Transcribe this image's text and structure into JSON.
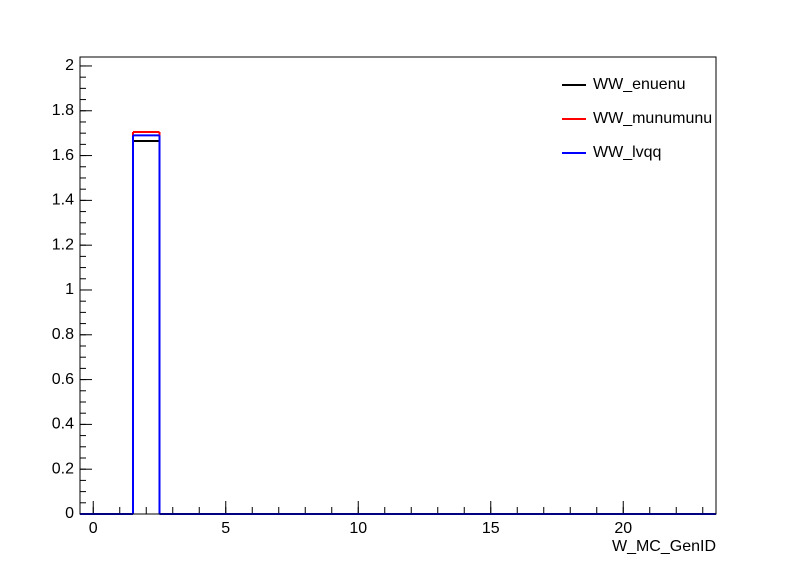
{
  "chart_data": {
    "type": "histogram",
    "x_label": "W_MC_GenID",
    "bins": [
      -0.5,
      0.5,
      1.5,
      2.5,
      3.5,
      4.5,
      5.5,
      6.5,
      7.5,
      8.5,
      9.5,
      10.5,
      11.5,
      12.5,
      13.5,
      14.5,
      15.5,
      16.5,
      17.5,
      18.5,
      19.5,
      20.5,
      21.5,
      22.5,
      23.5
    ],
    "series": [
      {
        "name": "WW_enuenu",
        "color": "#000000",
        "values": [
          0,
          0,
          1.665,
          0,
          0,
          0,
          0,
          0,
          0,
          0,
          0,
          0,
          0,
          0,
          0,
          0,
          0,
          0,
          0,
          0,
          0,
          0,
          0,
          0
        ]
      },
      {
        "name": "WW_munumunu",
        "color": "#ff0000",
        "values": [
          0,
          0,
          1.705,
          0,
          0,
          0,
          0,
          0,
          0,
          0,
          0,
          0,
          0,
          0,
          0,
          0,
          0,
          0,
          0,
          0,
          0,
          0,
          0,
          0
        ]
      },
      {
        "name": "WW_lvqq",
        "color": "#0000ff",
        "values": [
          0,
          0,
          1.69,
          0,
          0,
          0,
          0,
          0,
          0,
          0,
          0,
          0,
          0,
          0,
          0,
          0,
          0,
          0,
          0,
          0,
          0,
          0,
          0,
          0
        ]
      }
    ],
    "xlim": [
      -0.5,
      23.5
    ],
    "xticks": [
      0,
      5,
      10,
      15,
      20
    ],
    "ylim": [
      0,
      2.04
    ],
    "yticks": [
      0,
      0.2,
      0.4,
      0.6,
      0.8,
      1,
      1.2,
      1.4,
      1.6,
      1.8,
      2
    ],
    "legend": "top-right"
  }
}
